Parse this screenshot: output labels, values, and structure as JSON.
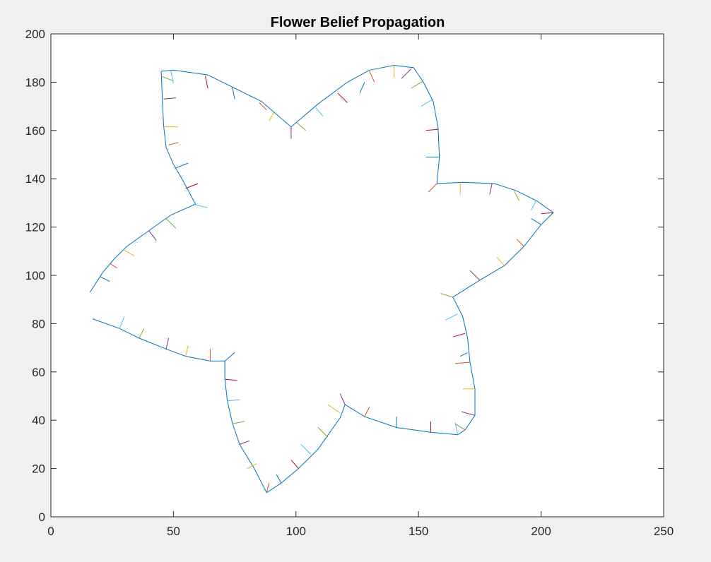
{
  "chart_data": {
    "type": "line",
    "title": "Flower Belief Propagation",
    "xlabel": "",
    "ylabel": "",
    "xlim": [
      0,
      250
    ],
    "ylim": [
      0,
      200
    ],
    "xticks": [
      0,
      50,
      100,
      150,
      200,
      250
    ],
    "yticks": [
      0,
      20,
      40,
      60,
      80,
      100,
      120,
      140,
      160,
      180,
      200
    ],
    "grid": false,
    "legend": "none",
    "outline_color": "#0072BD",
    "tick_colors": [
      "#0072BD",
      "#D95319",
      "#EDB120",
      "#7E2F8E",
      "#77AC30",
      "#4DBEEE",
      "#A2142F"
    ],
    "outline": [
      [
        16,
        93
      ],
      [
        21,
        101
      ],
      [
        26,
        107
      ],
      [
        31,
        112
      ],
      [
        42,
        120
      ],
      [
        49,
        125
      ],
      [
        59,
        129.5
      ],
      [
        54,
        139
      ],
      [
        50,
        146
      ],
      [
        47,
        153
      ],
      [
        46,
        162
      ],
      [
        45.5,
        172
      ],
      [
        45,
        184.5
      ],
      [
        50,
        185
      ],
      [
        64,
        183
      ],
      [
        74,
        178
      ],
      [
        86,
        172
      ],
      [
        98,
        161.5
      ],
      [
        109,
        171
      ],
      [
        121,
        180
      ],
      [
        130,
        185
      ],
      [
        140,
        187
      ],
      [
        148,
        186
      ],
      [
        152,
        180
      ],
      [
        156,
        172
      ],
      [
        158,
        161
      ],
      [
        158.5,
        149
      ],
      [
        157.5,
        138
      ],
      [
        168,
        138.5
      ],
      [
        181,
        138
      ],
      [
        190,
        135
      ],
      [
        198,
        131
      ],
      [
        205,
        126
      ],
      [
        200,
        121
      ],
      [
        193,
        112
      ],
      [
        185,
        104
      ],
      [
        175,
        98
      ],
      [
        164,
        91
      ],
      [
        168,
        83
      ],
      [
        170,
        74
      ],
      [
        171,
        64
      ],
      [
        173,
        53
      ],
      [
        173,
        42
      ],
      [
        169,
        36
      ],
      [
        166,
        34
      ],
      [
        155,
        35
      ],
      [
        141,
        37
      ],
      [
        128,
        41.5
      ],
      [
        120,
        46.5
      ],
      [
        118,
        41
      ],
      [
        109,
        28
      ],
      [
        101,
        20
      ],
      [
        94,
        14
      ],
      [
        88,
        10
      ],
      [
        83,
        20
      ],
      [
        77,
        30
      ],
      [
        74,
        39
      ],
      [
        72,
        48
      ],
      [
        71,
        57
      ],
      [
        71,
        64.5
      ],
      [
        65,
        64.5
      ],
      [
        55,
        66.5
      ],
      [
        47,
        69.5
      ],
      [
        36,
        74
      ],
      [
        28,
        78
      ],
      [
        17,
        82
      ]
    ],
    "ticks": [
      [
        20,
        99.5,
        24,
        97.5
      ],
      [
        24,
        105,
        27,
        103
      ],
      [
        30,
        110.5,
        34,
        108
      ],
      [
        40,
        118.5,
        43,
        114.5
      ],
      [
        47,
        123.5,
        51,
        119.5
      ],
      [
        58,
        129.5,
        64,
        128
      ],
      [
        55,
        136,
        60,
        138
      ],
      [
        51,
        144.5,
        56,
        146.5
      ],
      [
        48,
        154,
        52,
        155
      ],
      [
        46,
        161.5,
        52,
        161.5
      ],
      [
        46,
        173,
        51,
        173.5
      ],
      [
        45,
        182.5,
        50,
        180.5
      ],
      [
        49,
        184.5,
        50,
        179.5
      ],
      [
        63,
        182.5,
        64,
        177.5
      ],
      [
        74,
        178,
        75,
        173
      ],
      [
        85,
        171.5,
        88,
        168.5
      ],
      [
        91,
        167.5,
        89,
        164
      ],
      [
        98,
        161.5,
        98,
        156.5
      ],
      [
        100,
        163.5,
        104,
        160
      ],
      [
        108,
        169.5,
        111,
        166
      ],
      [
        117,
        175.5,
        121,
        171.5
      ],
      [
        128,
        180,
        126,
        175.5
      ],
      [
        130,
        184.5,
        132,
        180
      ],
      [
        140,
        187,
        140,
        182
      ],
      [
        147,
        185.5,
        143,
        181.5
      ],
      [
        152,
        180.5,
        147,
        177.5
      ],
      [
        156,
        173,
        151,
        170
      ],
      [
        158,
        160.5,
        153,
        160
      ],
      [
        158.5,
        149,
        153,
        149
      ],
      [
        157.5,
        138,
        154,
        134.5
      ],
      [
        167,
        138.5,
        167,
        133.5
      ],
      [
        180,
        138,
        179,
        133.5
      ],
      [
        189,
        135,
        191,
        131
      ],
      [
        198,
        131,
        196,
        127
      ],
      [
        205,
        126,
        200,
        125.5
      ],
      [
        200,
        121,
        196,
        123.5
      ],
      [
        193,
        112,
        190,
        115
      ],
      [
        185,
        104,
        182,
        107.5
      ],
      [
        175,
        98,
        171,
        102
      ],
      [
        164,
        91,
        159,
        92.5
      ],
      [
        166,
        84,
        161,
        81.5
      ],
      [
        169,
        76,
        164,
        74.5
      ],
      [
        170,
        68,
        167,
        66.5
      ],
      [
        171,
        64,
        165,
        63.5
      ],
      [
        173,
        53,
        168,
        53
      ],
      [
        173,
        42,
        167.5,
        43.5
      ],
      [
        169,
        36,
        165,
        38.5
      ],
      [
        166,
        34,
        165,
        39
      ],
      [
        155,
        35,
        155,
        39.5
      ],
      [
        141,
        37,
        141,
        41.5
      ],
      [
        128,
        41.5,
        130,
        45.5
      ],
      [
        118,
        43,
        113,
        46.5
      ],
      [
        120,
        46.5,
        118,
        51
      ],
      [
        113,
        33,
        109,
        37
      ],
      [
        106,
        26,
        102,
        30
      ],
      [
        101,
        20,
        98,
        23.5
      ],
      [
        94,
        14,
        92,
        17.5
      ],
      [
        88,
        10,
        89,
        14
      ],
      [
        80,
        20,
        84,
        22
      ],
      [
        77,
        30,
        81,
        31.5
      ],
      [
        74,
        38.5,
        79,
        39.5
      ],
      [
        72,
        48,
        77,
        48.5
      ],
      [
        71,
        57,
        76,
        56.5
      ],
      [
        71,
        64.5,
        75,
        68
      ],
      [
        65,
        64.5,
        65,
        69.5
      ],
      [
        55,
        66.5,
        56,
        71
      ],
      [
        47,
        69.5,
        48,
        74
      ],
      [
        36,
        74,
        38,
        78
      ],
      [
        28,
        78,
        30,
        83
      ]
    ]
  }
}
